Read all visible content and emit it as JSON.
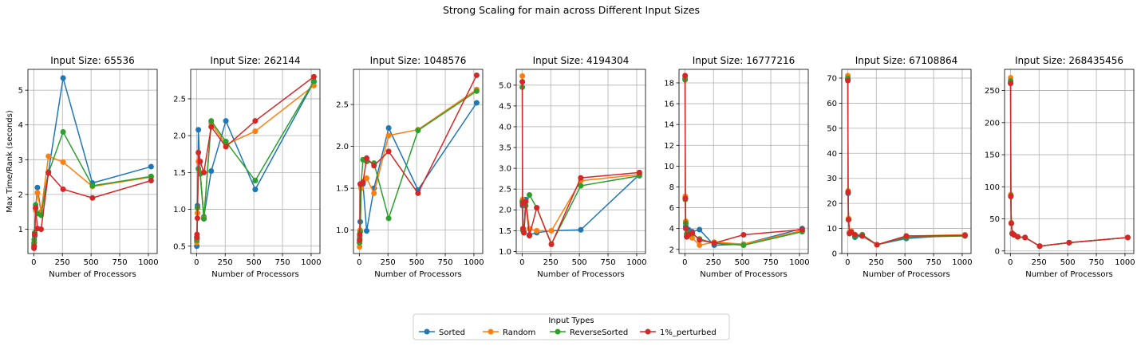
{
  "suptitle": "Strong Scaling for main across Different Input Sizes",
  "legend": {
    "title": "Input Types",
    "placement": "lower-center",
    "entries": [
      "Sorted",
      "Random",
      "ReverseSorted",
      "1%_perturbed"
    ]
  },
  "colors": {
    "Sorted": "#1f77b4",
    "Random": "#ff7f0e",
    "ReverseSorted": "#2ca02c",
    "1%_perturbed": "#d62728"
  },
  "chart_data": [
    {
      "type": "line",
      "title": "Input Size: 65536",
      "xlabel": "Number of Processors",
      "ylabel": "Max Time/Rank (seconds)",
      "grid": true,
      "x": [
        2,
        4,
        8,
        16,
        32,
        64,
        128,
        256,
        512,
        1024
      ],
      "xlim": [
        -51,
        1077
      ],
      "ylim": [
        0.3,
        5.6
      ],
      "xticks": [
        0,
        250,
        500,
        750,
        1000
      ],
      "yticks": [
        1,
        2,
        3,
        4,
        5
      ],
      "series": [
        {
          "name": "Sorted",
          "values": [
            0.5,
            0.6,
            0.8,
            1.6,
            2.2,
            1.5,
            2.65,
            5.35,
            2.33,
            2.8
          ]
        },
        {
          "name": "Random",
          "values": [
            0.55,
            0.62,
            0.85,
            1.55,
            2.05,
            1.5,
            3.1,
            2.93,
            2.23,
            2.5
          ]
        },
        {
          "name": "ReverseSorted",
          "values": [
            0.6,
            0.7,
            0.9,
            1.7,
            1.45,
            1.4,
            2.62,
            3.8,
            2.25,
            2.52
          ]
        },
        {
          "name": "1%_perturbed",
          "values": [
            0.45,
            0.5,
            0.85,
            1.62,
            1.02,
            1.0,
            2.62,
            2.15,
            1.9,
            2.4
          ]
        }
      ]
    },
    {
      "type": "line",
      "title": "Input Size: 262144",
      "xlabel": "Number of Processors",
      "ylabel": "",
      "grid": true,
      "x": [
        2,
        4,
        8,
        16,
        32,
        64,
        128,
        256,
        512,
        1024
      ],
      "xlim": [
        -51,
        1077
      ],
      "ylim": [
        0.4,
        2.9
      ],
      "xticks": [
        0,
        250,
        500,
        750,
        1000
      ],
      "yticks": [
        0.5,
        1.0,
        1.5,
        2.0,
        2.5
      ],
      "series": [
        {
          "name": "Sorted",
          "values": [
            0.5,
            0.62,
            1.05,
            2.08,
            1.5,
            0.9,
            1.52,
            2.2,
            1.27,
            2.73
          ]
        },
        {
          "name": "Random",
          "values": [
            0.55,
            0.6,
            0.95,
            1.65,
            1.5,
            0.88,
            2.17,
            1.88,
            2.06,
            2.68
          ]
        },
        {
          "name": "ReverseSorted",
          "values": [
            0.58,
            0.6,
            1.02,
            1.55,
            1.48,
            0.87,
            2.2,
            1.92,
            1.39,
            2.74
          ]
        },
        {
          "name": "1%_perturbed",
          "values": [
            0.62,
            0.66,
            0.88,
            1.77,
            1.65,
            1.5,
            2.12,
            1.85,
            2.2,
            2.8
          ]
        }
      ]
    },
    {
      "type": "line",
      "title": "Input Size: 1048576",
      "xlabel": "Number of Processors",
      "ylabel": "",
      "grid": true,
      "x": [
        2,
        4,
        8,
        16,
        32,
        64,
        128,
        256,
        512,
        1024
      ],
      "xlim": [
        -51,
        1077
      ],
      "ylim": [
        0.72,
        2.92
      ],
      "xticks": [
        0,
        250,
        500,
        750,
        1000
      ],
      "yticks": [
        1.0,
        1.5,
        2.0,
        2.5
      ],
      "series": [
        {
          "name": "Sorted",
          "values": [
            0.85,
            0.93,
            1.1,
            1.52,
            1.55,
            0.99,
            1.5,
            2.22,
            1.48,
            2.52
          ]
        },
        {
          "name": "Random",
          "values": [
            0.8,
            0.88,
            1.0,
            1.5,
            1.58,
            1.62,
            1.44,
            2.13,
            2.2,
            2.68
          ]
        },
        {
          "name": "ReverseSorted",
          "values": [
            0.85,
            0.9,
            0.98,
            1.55,
            1.84,
            1.82,
            1.8,
            1.14,
            2.19,
            2.66
          ]
        },
        {
          "name": "1%_perturbed",
          "values": [
            0.88,
            0.95,
            1.55,
            1.55,
            1.57,
            1.86,
            1.77,
            1.94,
            1.44,
            2.85
          ]
        }
      ]
    },
    {
      "type": "line",
      "title": "Input Size: 4194304",
      "xlabel": "Number of Processors",
      "ylabel": "",
      "grid": true,
      "x": [
        2,
        4,
        8,
        16,
        32,
        64,
        128,
        256,
        512,
        1024
      ],
      "xlim": [
        -51,
        1077
      ],
      "ylim": [
        0.95,
        5.38
      ],
      "xticks": [
        0,
        250,
        500,
        750,
        1000
      ],
      "yticks": [
        1.0,
        1.5,
        2.0,
        2.5,
        3.0,
        3.5,
        4.0,
        4.5,
        5.0
      ],
      "series": [
        {
          "name": "Sorted",
          "values": [
            2.2,
            2.1,
            1.5,
            1.45,
            2.25,
            1.4,
            1.45,
            1.5,
            1.52,
            2.85
          ]
        },
        {
          "name": "Random",
          "values": [
            5.22,
            2.25,
            1.55,
            1.48,
            2.2,
            1.55,
            1.5,
            1.5,
            2.7,
            2.85
          ]
        },
        {
          "name": "ReverseSorted",
          "values": [
            4.95,
            2.2,
            1.5,
            1.45,
            2.1,
            2.36,
            2.05,
            1.18,
            2.58,
            2.82
          ]
        },
        {
          "name": "1%_perturbed",
          "values": [
            5.08,
            2.15,
            1.55,
            1.45,
            2.2,
            1.38,
            2.05,
            1.17,
            2.77,
            2.9
          ]
        }
      ]
    },
    {
      "type": "line",
      "title": "Input Size: 16777216",
      "xlabel": "Number of Processors",
      "ylabel": "",
      "grid": true,
      "x": [
        2,
        4,
        8,
        16,
        32,
        64,
        128,
        256,
        512,
        1024
      ],
      "xlim": [
        -51,
        1077
      ],
      "ylim": [
        1.6,
        19.3
      ],
      "xticks": [
        0,
        250,
        500,
        750,
        1000
      ],
      "yticks": [
        2,
        4,
        6,
        8,
        10,
        12,
        14,
        16,
        18
      ],
      "series": [
        {
          "name": "Sorted",
          "values": [
            18.4,
            6.9,
            4.2,
            3.3,
            3.9,
            3.7,
            3.9,
            2.4,
            2.5,
            4.0
          ]
        },
        {
          "name": "Random",
          "values": [
            18.5,
            7.1,
            4.7,
            3.3,
            3.3,
            3.1,
            2.4,
            2.7,
            2.5,
            3.8
          ]
        },
        {
          "name": "ReverseSorted",
          "values": [
            18.3,
            6.8,
            4.5,
            3.5,
            3.6,
            3.5,
            3.0,
            2.6,
            2.4,
            3.7
          ]
        },
        {
          "name": "1%_perturbed",
          "values": [
            18.7,
            6.9,
            4.0,
            3.2,
            3.4,
            3.6,
            2.9,
            2.6,
            3.4,
            3.9
          ]
        }
      ]
    },
    {
      "type": "line",
      "title": "Input Size: 67108864",
      "xlabel": "Number of Processors",
      "ylabel": "",
      "grid": true,
      "x": [
        2,
        4,
        8,
        16,
        32,
        64,
        128,
        256,
        512,
        1024
      ],
      "xlim": [
        -51,
        1077
      ],
      "ylim": [
        0,
        73.5
      ],
      "xticks": [
        0,
        250,
        500,
        750,
        1000
      ],
      "yticks": [
        0,
        10,
        20,
        30,
        40,
        50,
        60,
        70
      ],
      "series": [
        {
          "name": "Sorted",
          "values": [
            69.5,
            24,
            13.5,
            8,
            8.5,
            6.5,
            7,
            3.5,
            6,
            7.5
          ]
        },
        {
          "name": "Random",
          "values": [
            71,
            25,
            14,
            8.5,
            9,
            7.5,
            7.5,
            3.5,
            7,
            7.5
          ]
        },
        {
          "name": "ReverseSorted",
          "values": [
            70,
            24.5,
            13.5,
            8,
            8.5,
            7,
            7.5,
            3.5,
            6.5,
            7
          ]
        },
        {
          "name": "1%_perturbed",
          "values": [
            69,
            24.5,
            13.5,
            8,
            8.5,
            7.5,
            7,
            3.5,
            7,
            7.2
          ]
        }
      ]
    },
    {
      "type": "line",
      "title": "Input Size: 268435456",
      "xlabel": "Number of Processors",
      "ylabel": "",
      "grid": true,
      "x": [
        2,
        4,
        8,
        16,
        32,
        64,
        128,
        256,
        512,
        1024
      ],
      "xlim": [
        -51,
        1077
      ],
      "ylim": [
        -4,
        283
      ],
      "xticks": [
        0,
        250,
        500,
        750,
        1000
      ],
      "yticks": [
        0,
        50,
        100,
        150,
        200,
        250
      ],
      "series": [
        {
          "name": "Sorted",
          "values": [
            262,
            85,
            43,
            27,
            25,
            22,
            21,
            7.5,
            13,
            21
          ]
        },
        {
          "name": "Random",
          "values": [
            270,
            88,
            44,
            28,
            25,
            22,
            21,
            7.5,
            13,
            21
          ]
        },
        {
          "name": "ReverseSorted",
          "values": [
            265,
            86,
            43,
            27,
            25,
            22,
            21,
            7.5,
            13,
            21
          ]
        },
        {
          "name": "1%_perturbed",
          "values": [
            261,
            85,
            43,
            27,
            25,
            22,
            21,
            7.5,
            13,
            21
          ]
        }
      ]
    }
  ]
}
